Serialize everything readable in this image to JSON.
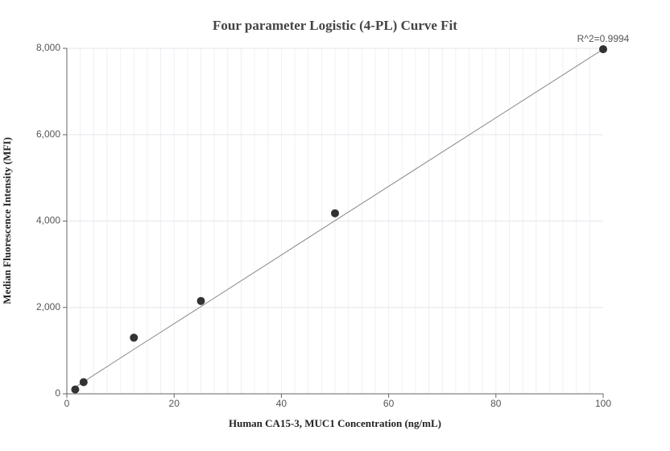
{
  "chart_data": {
    "type": "scatter",
    "title": "Four parameter Logistic (4-PL) Curve Fit",
    "x_label": "Human CA15-3, MUC1 Concentration (ng/mL)",
    "y_label": "Median Fluorescence Intensity (MFI)",
    "annotation": "R^2=0.9994",
    "series": [
      {
        "x": [
          1.5625,
          3.125,
          12.5,
          25,
          50,
          100
        ],
        "values": [
          100,
          270,
          1300,
          2150,
          4180,
          7980
        ],
        "color": "#333333",
        "mode": "markers"
      },
      {
        "x": [
          1.5625,
          3.125,
          12.5,
          25,
          50,
          100
        ],
        "values": [
          150,
          280,
          1030,
          2020,
          4010,
          7980
        ],
        "color": "#888888",
        "mode": "line"
      }
    ],
    "xlim": [
      0,
      100
    ],
    "ylim": [
      0,
      8000
    ],
    "xticks": [
      0,
      20,
      40,
      60,
      80,
      100
    ],
    "yticks": [
      0,
      {
        "value": 2000,
        "label": "2,000"
      },
      {
        "value": 4000,
        "label": "4,000"
      },
      {
        "value": 6000,
        "label": "6,000"
      },
      {
        "value": 8000,
        "label": "8,000"
      }
    ],
    "grid": true,
    "x_minor_grid_step": 2.5
  }
}
